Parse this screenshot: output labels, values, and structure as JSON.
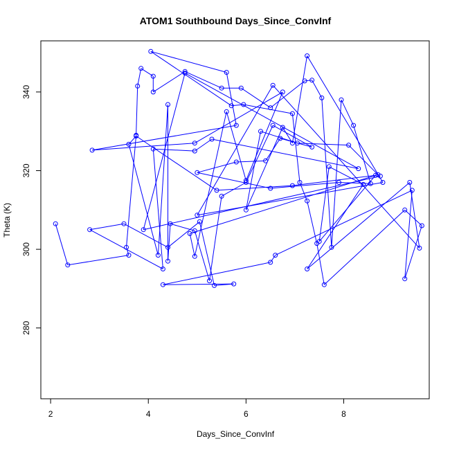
{
  "chart_data": {
    "type": "line",
    "title": "ATOM1 Southbound Days_Since_ConvInf",
    "xlabel": "Days_Since_ConvInf",
    "ylabel": "Theta (K)",
    "xlim": [
      1.8,
      9.75
    ],
    "ylim": [
      262,
      353
    ],
    "xticks": [
      2,
      4,
      6,
      8
    ],
    "yticks": [
      280,
      300,
      320,
      340
    ],
    "grid": false,
    "legend": "none",
    "markers": "open-circle",
    "color": "#0000ff",
    "points": [
      [
        2.1,
        306.5
      ],
      [
        2.35,
        296
      ],
      [
        3.6,
        298.5
      ],
      [
        3.55,
        300.5
      ],
      [
        3.75,
        329
      ],
      [
        3.78,
        341.5
      ],
      [
        3.85,
        346
      ],
      [
        4.1,
        344
      ],
      [
        4.1,
        340
      ],
      [
        4.75,
        345.2
      ],
      [
        5.5,
        341
      ],
      [
        5.9,
        341
      ],
      [
        6.5,
        336
      ],
      [
        7.2,
        342.8
      ],
      [
        7.35,
        343
      ],
      [
        7.55,
        338.5
      ],
      [
        7.75,
        300.5
      ],
      [
        7.95,
        338
      ],
      [
        8.2,
        331.5
      ],
      [
        8.55,
        316.7
      ],
      [
        7.9,
        317
      ],
      [
        6.5,
        315.5
      ],
      [
        5.0,
        319.5
      ],
      [
        5.8,
        322.2
      ],
      [
        6.4,
        322.5
      ],
      [
        6.7,
        328.2
      ],
      [
        7.35,
        326
      ],
      [
        6.55,
        331.5
      ],
      [
        6.0,
        317
      ],
      [
        5.5,
        313.5
      ],
      [
        5.25,
        292
      ],
      [
        4.95,
        304.7
      ],
      [
        4.45,
        306.5
      ],
      [
        4.4,
        297
      ],
      [
        4.4,
        336.8
      ],
      [
        4.2,
        298.5
      ],
      [
        3.6,
        326.7
      ],
      [
        3.75,
        328.8
      ],
      [
        5.4,
        315
      ],
      [
        6.95,
        316.2
      ],
      [
        8.65,
        318.8
      ],
      [
        7.5,
        302
      ],
      [
        7.7,
        321
      ],
      [
        8.4,
        316.5
      ],
      [
        7.25,
        295
      ],
      [
        9.35,
        317
      ],
      [
        9.55,
        300.3
      ],
      [
        6.55,
        341.7
      ],
      [
        5.0,
        308.7
      ],
      [
        8.8,
        317
      ],
      [
        7.25,
        349.2
      ],
      [
        6.95,
        327
      ],
      [
        6.75,
        331
      ],
      [
        6.0,
        310
      ],
      [
        6.3,
        330
      ],
      [
        7.05,
        327
      ],
      [
        8.1,
        326.5
      ],
      [
        8.7,
        319
      ],
      [
        4.85,
        304
      ],
      [
        4.95,
        298.2
      ],
      [
        5.6,
        335
      ],
      [
        6.0,
        317.5
      ],
      [
        6.75,
        340
      ],
      [
        4.95,
        327
      ],
      [
        2.85,
        325.2
      ],
      [
        5.8,
        331.5
      ],
      [
        5.6,
        345
      ],
      [
        4.05,
        350.3
      ],
      [
        5.7,
        336.5
      ],
      [
        5.95,
        336.8
      ],
      [
        6.95,
        334.5
      ],
      [
        7.1,
        317
      ],
      [
        7.25,
        312.3
      ],
      [
        7.45,
        301.5
      ],
      [
        7.6,
        291
      ],
      [
        9.25,
        310
      ],
      [
        9.6,
        306
      ],
      [
        9.25,
        292.5
      ],
      [
        9.4,
        315
      ],
      [
        6.6,
        298.5
      ],
      [
        6.5,
        296.7
      ],
      [
        4.3,
        291
      ],
      [
        5.75,
        291.2
      ],
      [
        5.35,
        290.8
      ],
      [
        5.05,
        307
      ],
      [
        4.4,
        300.5
      ],
      [
        3.5,
        306.5
      ],
      [
        2.8,
        305
      ],
      [
        4.3,
        295
      ],
      [
        4.1,
        325.5
      ],
      [
        4.95,
        325
      ],
      [
        5.3,
        328
      ],
      [
        8.3,
        320.5
      ],
      [
        4.75,
        344.8
      ],
      [
        3.9,
        305
      ],
      [
        8.75,
        318.6
      ]
    ]
  }
}
